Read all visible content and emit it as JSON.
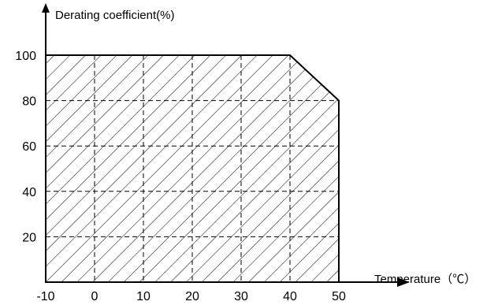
{
  "chart_data": {
    "type": "area",
    "title": "",
    "ylabel": "Derating coefficient(%)",
    "xlabel": "Temperature（℃）",
    "x_ticks": [
      -10,
      0,
      10,
      20,
      30,
      40,
      50
    ],
    "x_tick_labels": [
      "-10",
      "0",
      "10",
      "20",
      "30",
      "40",
      "50"
    ],
    "y_ticks": [
      20,
      40,
      60,
      80,
      100
    ],
    "y_tick_labels": [
      "20",
      "40",
      "60",
      "80",
      "100"
    ],
    "xlim": [
      -10,
      50
    ],
    "ylim": [
      0,
      100
    ],
    "grid": true,
    "fill_pattern": "diagonal-hatch",
    "series": [
      {
        "x": [
          -10,
          40,
          50,
          50
        ],
        "y": [
          100,
          100,
          80,
          0
        ]
      }
    ]
  }
}
